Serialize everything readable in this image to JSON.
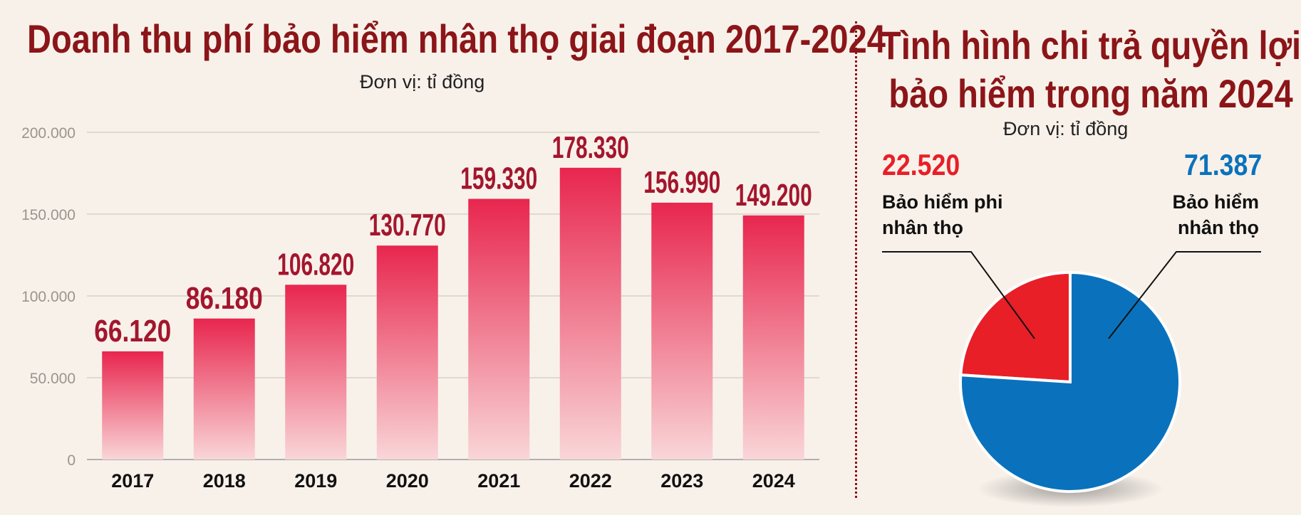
{
  "bar_chart": {
    "title": "Doanh thu phí bảo hiểm nhân thọ giai đoạn 2017-2024",
    "unit": "Đơn vị: tỉ đồng"
  },
  "pie_chart": {
    "title_line1": "Tình hình chi trả quyền lợi",
    "title_line2": "bảo hiểm trong năm 2024",
    "unit": "Đơn vị: tỉ đồng",
    "label_nonlife_value": "22.520",
    "label_nonlife_name_line1": "Bảo hiểm phi",
    "label_nonlife_name_line2": "nhân thọ",
    "label_life_value": "71.387",
    "label_life_name_line1": "Bảo hiểm",
    "label_life_name_line2": "nhân thọ"
  },
  "chart_data": [
    {
      "type": "bar",
      "title": "Doanh thu phí bảo hiểm nhân thọ giai đoạn 2017-2024",
      "categories": [
        "2017",
        "2018",
        "2019",
        "2020",
        "2021",
        "2022",
        "2023",
        "2024"
      ],
      "values": [
        66120,
        86180,
        106820,
        130770,
        159330,
        178330,
        156990,
        149200
      ],
      "value_labels": [
        "66.120",
        "86.180",
        "106.820",
        "130.770",
        "159.330",
        "178.330",
        "156.990",
        "149.200"
      ],
      "ylim": [
        0,
        200000
      ],
      "yticks": [
        0,
        50000,
        100000,
        150000,
        200000
      ],
      "ytick_labels": [
        "0",
        "50.000",
        "100.000",
        "150.000",
        "200.000"
      ],
      "grid": true,
      "bar_color_top": "#e8264e",
      "bar_color_bottom": "#f9d6d8",
      "label_color": "#a3162d"
    },
    {
      "type": "pie",
      "title": "Tình hình chi trả quyền lợi bảo hiểm trong năm 2024",
      "labels": [
        "Bảo hiểm phi nhân thọ",
        "Bảo hiểm nhân thọ"
      ],
      "values": [
        22520,
        71387
      ],
      "colors": [
        "#e81f26",
        "#0a72bc"
      ]
    }
  ]
}
